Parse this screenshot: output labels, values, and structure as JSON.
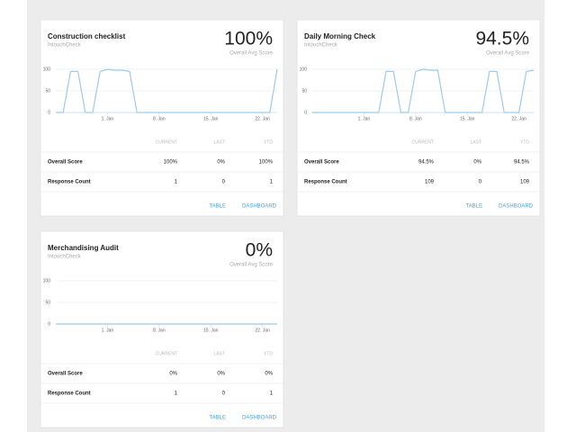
{
  "cards": [
    {
      "title": "Construction checklist",
      "subtitle": "IntouchCheck",
      "score": "100%",
      "score_label": "Overall Avg Score",
      "chart": {
        "type": "line",
        "color": "#9ecbef",
        "grid": true,
        "ylim": [
          0,
          100
        ],
        "yticks": [
          0,
          50,
          100
        ],
        "categories": [
          null,
          null,
          null,
          null,
          null,
          null,
          null,
          "1. Jan",
          null,
          null,
          null,
          null,
          null,
          null,
          "8. Jan",
          null,
          null,
          null,
          null,
          null,
          null,
          "15. Jan",
          null,
          null,
          null,
          null,
          null,
          null,
          "22. Jan",
          null,
          null
        ],
        "values": [
          0,
          0,
          95,
          95,
          0,
          0,
          95,
          100,
          98,
          98,
          95,
          0,
          0,
          0,
          0,
          0,
          0,
          0,
          0,
          0,
          0,
          0,
          0,
          0,
          0,
          0,
          0,
          0,
          0,
          0,
          100
        ]
      },
      "table": {
        "columns": [
          "CURRENT",
          "LAST",
          "YTD"
        ],
        "rows": [
          [
            "Overall Score",
            "100%",
            "0%",
            "100%"
          ],
          [
            "Response Count",
            1,
            0,
            1
          ]
        ]
      },
      "actions": [
        "TABLE",
        "DASHBOARD"
      ]
    },
    {
      "title": "Daily Morning Check",
      "subtitle": "IntouchCheck",
      "score": "94.5%",
      "score_label": "Overall Avg Score",
      "chart": {
        "type": "line",
        "color": "#9ecbef",
        "grid": true,
        "ylim": [
          0,
          100
        ],
        "yticks": [
          0,
          50,
          100
        ],
        "categories": [
          null,
          null,
          null,
          null,
          null,
          null,
          null,
          "1. Jan",
          null,
          null,
          null,
          null,
          null,
          null,
          "8. Jan",
          null,
          null,
          null,
          null,
          null,
          null,
          "15. Jan",
          null,
          null,
          null,
          null,
          null,
          null,
          "22. Jan",
          null,
          null
        ],
        "values": [
          0,
          0,
          0,
          0,
          0,
          0,
          0,
          0,
          0,
          0,
          95,
          95,
          0,
          0,
          95,
          100,
          98,
          98,
          0,
          0,
          0,
          0,
          0,
          0,
          95,
          95,
          0,
          0,
          0,
          95,
          98
        ]
      },
      "table": {
        "columns": [
          "CURRENT",
          "LAST",
          "YTD"
        ],
        "rows": [
          [
            "Overall Score",
            "94.5%",
            "0%",
            "94.5%"
          ],
          [
            "Response Count",
            109,
            0,
            109
          ]
        ]
      },
      "actions": [
        "TABLE",
        "DASHBOARD"
      ]
    },
    {
      "title": "Merchandising Audit",
      "subtitle": "IntouchCheck",
      "score": "0%",
      "score_label": "Overall Avg Score",
      "chart": {
        "type": "line",
        "color": "#9ecbef",
        "grid": true,
        "ylim": [
          0,
          100
        ],
        "yticks": [
          0,
          50,
          100
        ],
        "categories": [
          null,
          null,
          null,
          null,
          null,
          null,
          null,
          "1. Jan",
          null,
          null,
          null,
          null,
          null,
          null,
          "8. Jan",
          null,
          null,
          null,
          null,
          null,
          null,
          "15. Jan",
          null,
          null,
          null,
          null,
          null,
          null,
          "22. Jan",
          null,
          null
        ],
        "values": [
          0,
          0,
          0,
          0,
          0,
          0,
          0,
          0,
          0,
          0,
          0,
          0,
          0,
          0,
          0,
          0,
          0,
          0,
          0,
          0,
          0,
          0,
          0,
          0,
          0,
          0,
          0,
          0,
          0,
          0,
          0
        ]
      },
      "table": {
        "columns": [
          "CURRENT",
          "LAST",
          "YTD"
        ],
        "rows": [
          [
            "Overall Score",
            "0%",
            "0%",
            "0%"
          ],
          [
            "Response Count",
            1,
            0,
            1
          ]
        ]
      },
      "actions": [
        "TABLE",
        "DASHBOARD"
      ]
    }
  ]
}
